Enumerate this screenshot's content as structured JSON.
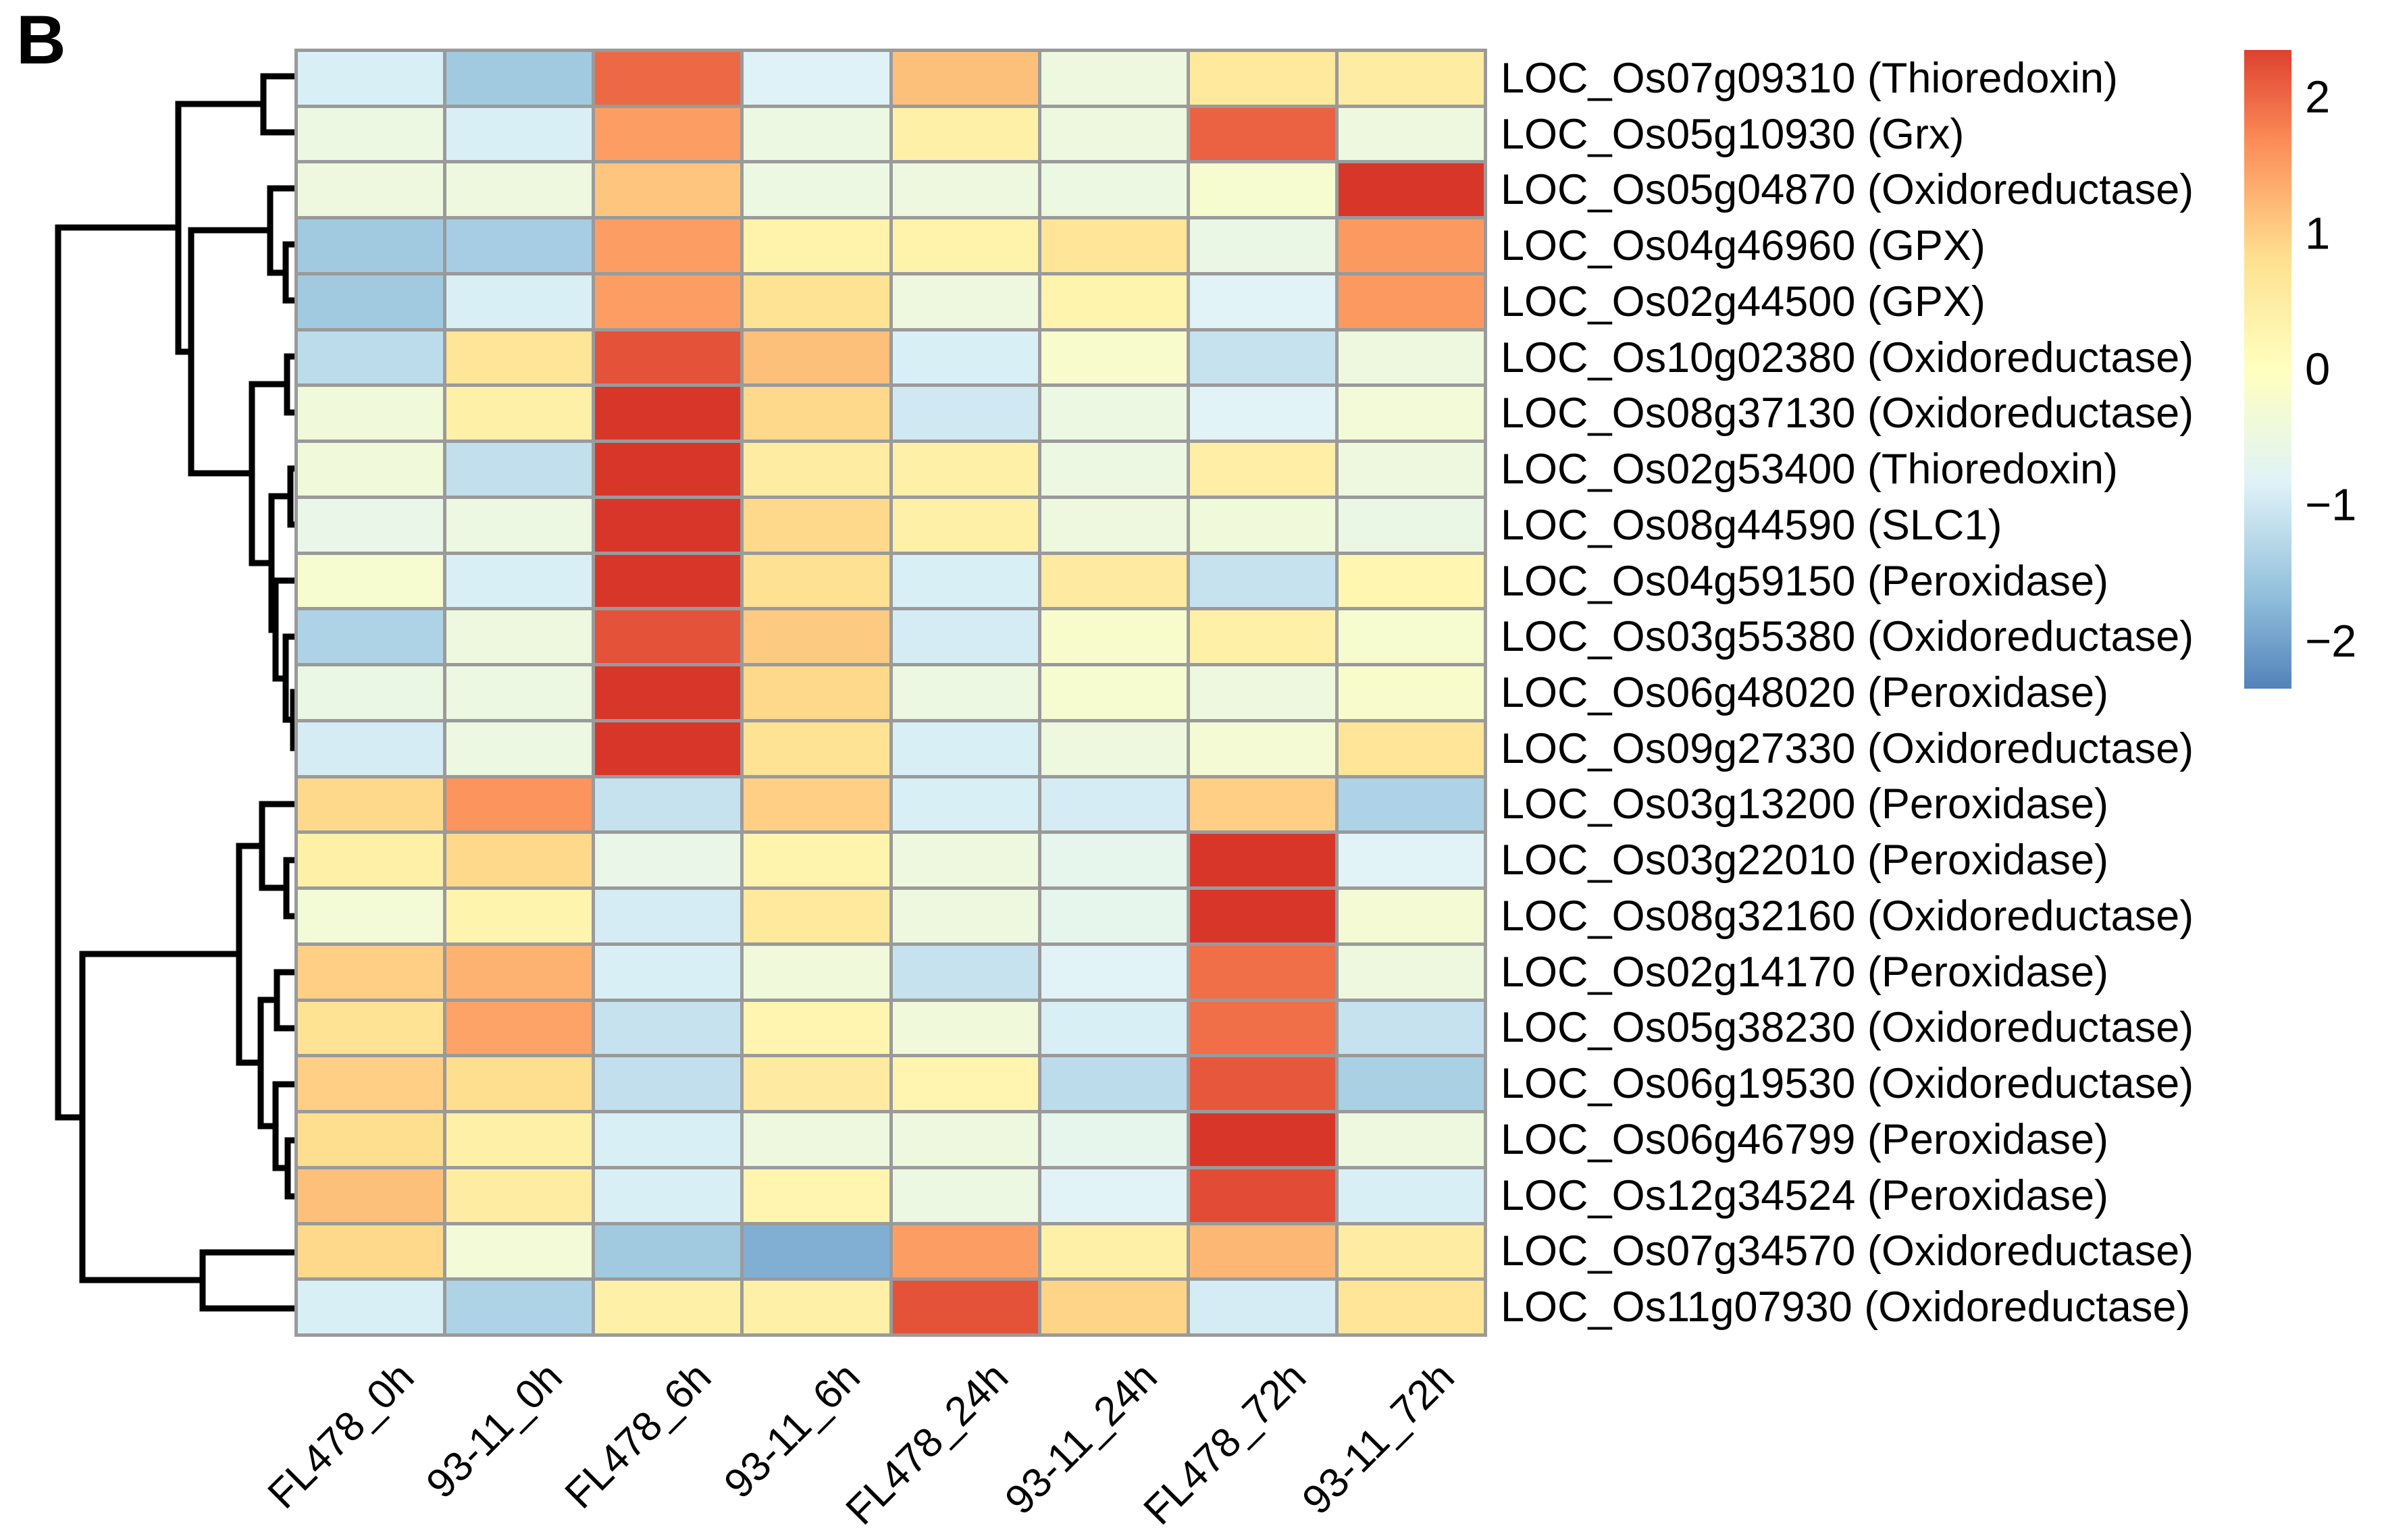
{
  "panel_label": "B",
  "chart_data": {
    "type": "heatmap",
    "title": "",
    "xlabel": "",
    "ylabel": "",
    "grid_line_color": "#9a9a9a",
    "dendrogram_color": "#000000",
    "columns": [
      "FL478_0h",
      "93-11_0h",
      "FL478_6h",
      "93-11_6h",
      "FL478_24h",
      "93-11_24h",
      "FL478_72h",
      "93-11_72h"
    ],
    "rows": [
      {
        "label": "LOC_Os07g09310 (Thioredoxin)",
        "values": [
          -0.9,
          -1.5,
          2.0,
          -0.85,
          1.15,
          -0.45,
          0.6,
          0.5
        ]
      },
      {
        "label": "LOC_Os05g10930 (Grx)",
        "values": [
          -0.5,
          -0.9,
          1.5,
          -0.5,
          0.4,
          -0.45,
          2.05,
          -0.45
        ]
      },
      {
        "label": "LOC_Os05g04870 (Oxidoreductase)",
        "values": [
          -0.45,
          -0.45,
          1.1,
          -0.5,
          -0.45,
          -0.5,
          -0.25,
          2.45
        ]
      },
      {
        "label": "LOC_Os04g46960 (GPX)",
        "values": [
          -1.5,
          -1.45,
          1.5,
          0.35,
          0.35,
          0.7,
          -0.55,
          1.55
        ]
      },
      {
        "label": "LOC_Os02g44500 (GPX)",
        "values": [
          -1.5,
          -0.9,
          1.5,
          0.75,
          -0.45,
          0.3,
          -0.8,
          1.55
        ]
      },
      {
        "label": "LOC_Os10g02380 (Oxidoreductase)",
        "values": [
          -1.2,
          0.7,
          2.2,
          1.15,
          -0.9,
          -0.2,
          -1.1,
          -0.45
        ]
      },
      {
        "label": "LOC_Os08g37130 (Oxidoreductase)",
        "values": [
          -0.4,
          0.4,
          2.45,
          0.9,
          -1.0,
          -0.5,
          -0.8,
          -0.35
        ]
      },
      {
        "label": "LOC_Os02g53400 (Thioredoxin)",
        "values": [
          -0.4,
          -1.15,
          2.45,
          0.5,
          0.4,
          -0.5,
          0.45,
          -0.45
        ]
      },
      {
        "label": "LOC_Os08g44590 (SLC1)",
        "values": [
          -0.6,
          -0.5,
          2.45,
          0.9,
          0.4,
          -0.45,
          -0.4,
          -0.55
        ]
      },
      {
        "label": "LOC_Os04g59150 (Peroxidase)",
        "values": [
          -0.25,
          -0.9,
          2.45,
          0.8,
          -0.9,
          0.55,
          -1.1,
          0.25
        ]
      },
      {
        "label": "LOC_Os03g55380 (Oxidoreductase)",
        "values": [
          -1.35,
          -0.45,
          2.2,
          1.05,
          -0.95,
          -0.2,
          0.4,
          -0.25
        ]
      },
      {
        "label": "LOC_Os06g48020 (Peroxidase)",
        "values": [
          -0.55,
          -0.5,
          2.45,
          0.9,
          -0.5,
          -0.25,
          -0.45,
          -0.2
        ]
      },
      {
        "label": "LOC_Os09g27330 (Oxidoreductase)",
        "values": [
          -0.95,
          -0.5,
          2.45,
          0.75,
          -0.9,
          -0.45,
          -0.3,
          0.7
        ]
      },
      {
        "label": "LOC_Os03g13200 (Peroxidase)",
        "values": [
          0.9,
          1.6,
          -1.1,
          1.0,
          -0.9,
          -0.95,
          1.0,
          -1.35
        ]
      },
      {
        "label": "LOC_Os03g22010 (Peroxidase)",
        "values": [
          0.4,
          0.9,
          -0.6,
          0.3,
          -0.45,
          -0.65,
          2.45,
          -0.8
        ]
      },
      {
        "label": "LOC_Os08g32160 (Oxidoreductase)",
        "values": [
          -0.35,
          0.3,
          -0.95,
          0.6,
          -0.45,
          -0.65,
          2.45,
          -0.3
        ]
      },
      {
        "label": "LOC_Os02g14170 (Peroxidase)",
        "values": [
          1.0,
          1.3,
          -0.9,
          -0.4,
          -1.1,
          -0.8,
          1.95,
          -0.45
        ]
      },
      {
        "label": "LOC_Os05g38230 (Oxidoreductase)",
        "values": [
          0.75,
          1.45,
          -1.1,
          0.27,
          -0.4,
          -0.9,
          1.95,
          -1.1
        ]
      },
      {
        "label": "LOC_Os06g19530 (Oxidoreductase)",
        "values": [
          1.0,
          0.85,
          -1.15,
          0.55,
          0.27,
          -1.2,
          2.15,
          -1.4
        ]
      },
      {
        "label": "LOC_Os06g46799 (Peroxidase)",
        "values": [
          0.85,
          0.4,
          -0.9,
          -0.45,
          -0.45,
          -0.65,
          2.45,
          -0.45
        ]
      },
      {
        "label": "LOC_Os12g34524 (Peroxidase)",
        "values": [
          1.15,
          0.5,
          -0.9,
          0.27,
          -0.5,
          -0.8,
          2.25,
          -0.9
        ]
      },
      {
        "label": "LOC_Os07g34570 (Oxidoreductase)",
        "values": [
          0.9,
          -0.35,
          -1.5,
          -1.85,
          1.5,
          0.4,
          1.25,
          0.5
        ]
      },
      {
        "label": "LOC_Os11g07930 (Oxidoreductase)",
        "values": [
          -0.9,
          -1.35,
          0.4,
          0.4,
          2.2,
          0.95,
          -0.95,
          0.7
        ]
      }
    ],
    "colorbar": {
      "tick_labels": [
        "2",
        "1",
        "0",
        "−1",
        "−2"
      ],
      "tick_values": [
        2,
        1,
        0,
        -1,
        -2
      ],
      "vmax": 2.35,
      "vmin": -2.35,
      "palette_low_to_high": [
        "#4575b4",
        "#91bfdb",
        "#e0f3f8",
        "#ffffbf",
        "#fee090",
        "#fc8d59",
        "#d73027"
      ]
    },
    "row_dendrogram_segments": [
      [
        436,
        113,
        390,
        113
      ],
      [
        436,
        196,
        390,
        196
      ],
      [
        390,
        113,
        390,
        196
      ],
      [
        390,
        154,
        264,
        154
      ],
      [
        436,
        279,
        400,
        279
      ],
      [
        436,
        362,
        423,
        362
      ],
      [
        436,
        445,
        423,
        445
      ],
      [
        423,
        362,
        423,
        445
      ],
      [
        423,
        404,
        400,
        404
      ],
      [
        400,
        279,
        400,
        404
      ],
      [
        400,
        341,
        283,
        341
      ],
      [
        436,
        528,
        425,
        528
      ],
      [
        436,
        611,
        425,
        611
      ],
      [
        425,
        528,
        425,
        611
      ],
      [
        425,
        569,
        373,
        569
      ],
      [
        436,
        694,
        430,
        694
      ],
      [
        436,
        777,
        430,
        777
      ],
      [
        430,
        694,
        430,
        777
      ],
      [
        430,
        735,
        402,
        735
      ],
      [
        436,
        1025,
        434,
        1025
      ],
      [
        436,
        1108,
        434,
        1108
      ],
      [
        434,
        1025,
        434,
        1108
      ],
      [
        434,
        1066,
        423,
        1066
      ],
      [
        436,
        943,
        423,
        943
      ],
      [
        423,
        943,
        423,
        1066
      ],
      [
        423,
        1005,
        408,
        1005
      ],
      [
        436,
        860,
        408,
        860
      ],
      [
        408,
        860,
        408,
        1005
      ],
      [
        408,
        933,
        402,
        933
      ],
      [
        402,
        735,
        402,
        933
      ],
      [
        402,
        834,
        373,
        834
      ],
      [
        373,
        569,
        373,
        834
      ],
      [
        373,
        701,
        283,
        701
      ],
      [
        283,
        341,
        283,
        701
      ],
      [
        283,
        521,
        264,
        521
      ],
      [
        264,
        154,
        264,
        521
      ],
      [
        264,
        337,
        86,
        337
      ],
      [
        436,
        1191,
        388,
        1191
      ],
      [
        436,
        1274,
        424,
        1274
      ],
      [
        436,
        1357,
        424,
        1357
      ],
      [
        424,
        1274,
        424,
        1357
      ],
      [
        424,
        1315,
        388,
        1315
      ],
      [
        388,
        1191,
        388,
        1315
      ],
      [
        388,
        1253,
        354,
        1253
      ],
      [
        436,
        1440,
        410,
        1440
      ],
      [
        436,
        1523,
        410,
        1523
      ],
      [
        410,
        1440,
        410,
        1523
      ],
      [
        410,
        1481,
        386,
        1481
      ],
      [
        436,
        1606,
        408,
        1606
      ],
      [
        436,
        1689,
        426,
        1689
      ],
      [
        436,
        1772,
        426,
        1772
      ],
      [
        426,
        1689,
        426,
        1772
      ],
      [
        426,
        1730,
        408,
        1730
      ],
      [
        408,
        1606,
        408,
        1730
      ],
      [
        408,
        1668,
        386,
        1668
      ],
      [
        386,
        1481,
        386,
        1668
      ],
      [
        386,
        1574,
        354,
        1574
      ],
      [
        354,
        1253,
        354,
        1574
      ],
      [
        354,
        1413,
        122,
        1413
      ],
      [
        436,
        1855,
        300,
        1855
      ],
      [
        436,
        1938,
        300,
        1938
      ],
      [
        300,
        1855,
        300,
        1938
      ],
      [
        300,
        1896,
        122,
        1896
      ],
      [
        122,
        1413,
        122,
        1896
      ],
      [
        122,
        1655,
        86,
        1655
      ],
      [
        86,
        337,
        86,
        1655
      ]
    ]
  }
}
